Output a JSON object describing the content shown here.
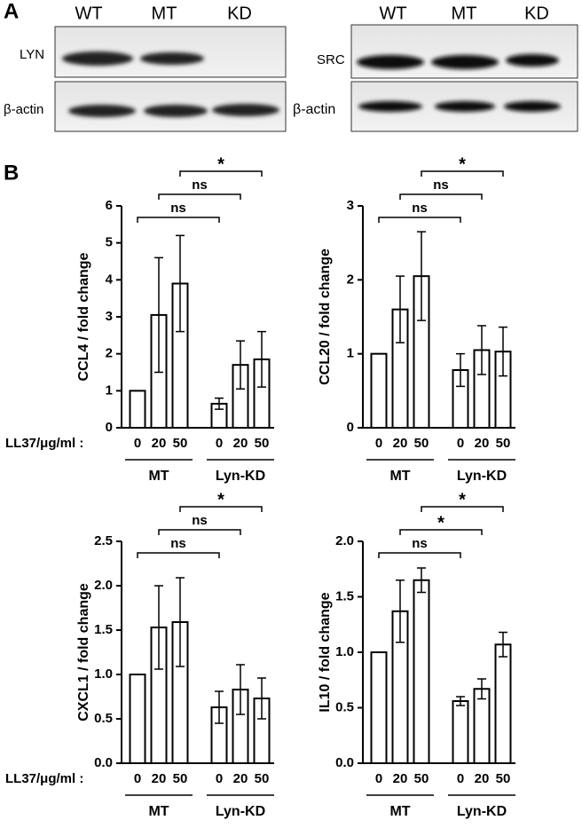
{
  "panels": {
    "a": "A",
    "b": "B"
  },
  "blot": {
    "left": {
      "lanes": [
        "WT",
        "MT",
        "KD"
      ],
      "rows": [
        "LYN",
        "β-actin"
      ]
    },
    "right": {
      "lanes": [
        "WT",
        "MT",
        "KD"
      ],
      "rows": [
        "SRC",
        "β-actin"
      ]
    }
  },
  "chart_data": [
    {
      "type": "bar",
      "ylabel": "CCL4 / fold change",
      "xlabel": "LL37/μg/ml :",
      "categories": [
        "0",
        "20",
        "50",
        "0",
        "20",
        "50"
      ],
      "groups": [
        "MT",
        "Lyn-KD"
      ],
      "values": [
        1,
        3.05,
        3.9,
        0.65,
        1.7,
        1.85
      ],
      "errors": [
        0,
        1.55,
        1.3,
        0.15,
        0.65,
        0.75
      ],
      "ylim": [
        0,
        6
      ],
      "yticks": [
        0,
        1,
        2,
        3,
        4,
        5,
        6
      ],
      "brackets": [
        {
          "from": 0,
          "to": 3,
          "label": "ns"
        },
        {
          "from": 1,
          "to": 4,
          "label": "ns"
        },
        {
          "from": 2,
          "to": 5,
          "label": "*"
        }
      ]
    },
    {
      "type": "bar",
      "ylabel": "CCL20 / fold change",
      "categories": [
        "0",
        "20",
        "50",
        "0",
        "20",
        "50"
      ],
      "groups": [
        "MT",
        "Lyn-KD"
      ],
      "values": [
        1,
        1.6,
        2.05,
        0.78,
        1.05,
        1.03
      ],
      "errors": [
        0,
        0.45,
        0.6,
        0.22,
        0.33,
        0.33
      ],
      "ylim": [
        0,
        3
      ],
      "yticks": [
        0,
        1,
        2,
        3
      ],
      "brackets": [
        {
          "from": 0,
          "to": 3,
          "label": "ns"
        },
        {
          "from": 1,
          "to": 4,
          "label": "ns"
        },
        {
          "from": 2,
          "to": 5,
          "label": "*"
        }
      ]
    },
    {
      "type": "bar",
      "ylabel": "CXCL1 / fold change",
      "xlabel": "LL37/μg/ml :",
      "categories": [
        "0",
        "20",
        "50",
        "0",
        "20",
        "50"
      ],
      "groups": [
        "MT",
        "Lyn-KD"
      ],
      "values": [
        1,
        1.53,
        1.59,
        0.63,
        0.83,
        0.73
      ],
      "errors": [
        0,
        0.47,
        0.5,
        0.18,
        0.28,
        0.23
      ],
      "ylim": [
        0,
        2.5
      ],
      "yticks": [
        {
          "value": 0,
          "label": "0.0"
        },
        0.5,
        {
          "value": 1,
          "label": "1.0"
        },
        1.5,
        {
          "value": 2,
          "label": "2.0"
        },
        2.5
      ],
      "brackets": [
        {
          "from": 0,
          "to": 3,
          "label": "ns"
        },
        {
          "from": 1,
          "to": 4,
          "label": "ns"
        },
        {
          "from": 2,
          "to": 5,
          "label": "*"
        }
      ]
    },
    {
      "type": "bar",
      "ylabel": "IL10 / fold change",
      "categories": [
        "0",
        "20",
        "50",
        "0",
        "20",
        "50"
      ],
      "groups": [
        "MT",
        "Lyn-KD"
      ],
      "values": [
        1,
        1.37,
        1.65,
        0.56,
        0.67,
        1.07
      ],
      "errors": [
        0,
        0.28,
        0.11,
        0.04,
        0.09,
        0.11
      ],
      "ylim": [
        0,
        2
      ],
      "yticks": [
        {
          "value": 0,
          "label": "0.0"
        },
        0.5,
        {
          "value": 1,
          "label": "1.0"
        },
        1.5,
        {
          "value": 2,
          "label": "2.0"
        }
      ],
      "brackets": [
        {
          "from": 0,
          "to": 3,
          "label": "ns"
        },
        {
          "from": 1,
          "to": 4,
          "label": "*"
        },
        {
          "from": 2,
          "to": 5,
          "label": "*"
        }
      ]
    }
  ]
}
